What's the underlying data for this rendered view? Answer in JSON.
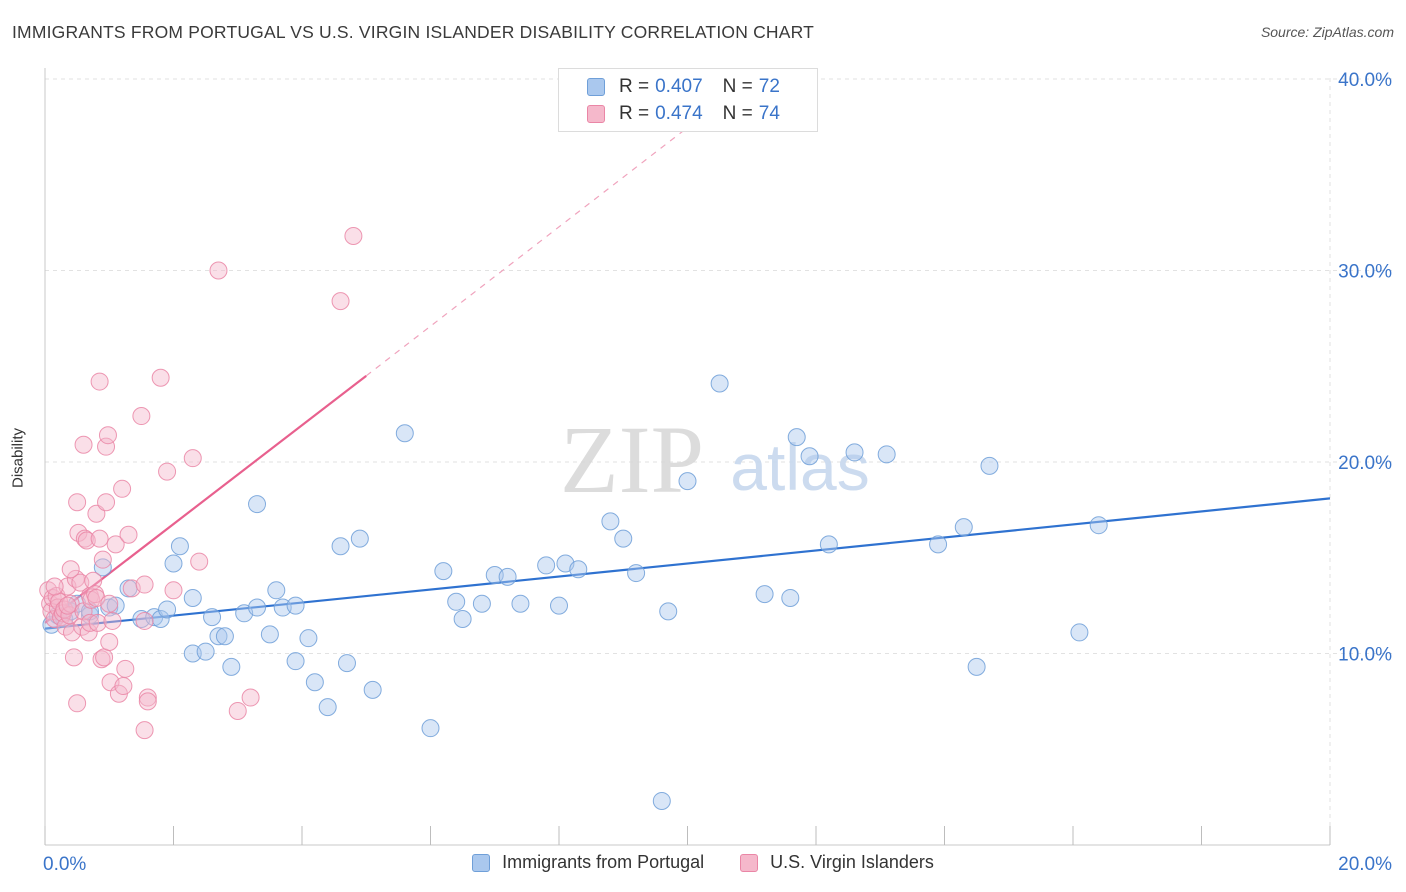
{
  "header": {
    "title": "IMMIGRANTS FROM PORTUGAL VS U.S. VIRGIN ISLANDER DISABILITY CORRELATION CHART",
    "source": "Source: ZipAtlas.com"
  },
  "watermark": {
    "zip": "ZIP",
    "atlas": "atlas"
  },
  "legend_top": {
    "rows": [
      {
        "r_label": "R =",
        "r_value": "0.407",
        "n_label": "N =",
        "n_value": "72"
      },
      {
        "r_label": "R =",
        "r_value": "0.474",
        "n_label": "N =",
        "n_value": "74"
      }
    ]
  },
  "legend_bottom": {
    "items": [
      "Immigrants from Portugal",
      "U.S. Virgin Islanders"
    ]
  },
  "colors": {
    "blue_fill": "#aac8ee",
    "blue_stroke": "#6f9fd8",
    "blue_line": "#2f72d0",
    "pink_fill": "#f5b8cb",
    "pink_stroke": "#ea86a6",
    "pink_line": "#e8608e",
    "tick_label": "#3a74c9",
    "grid": "#e2e2e2"
  },
  "chart_data": {
    "type": "scatter",
    "ylabel": "Disability",
    "xlim": [
      0,
      20
    ],
    "ylim": [
      0,
      40
    ],
    "x_ticks": [
      "0.0%",
      "20.0%"
    ],
    "y_ticks": [
      {
        "value": 10,
        "label": "10.0%"
      },
      {
        "value": 20,
        "label": "20.0%"
      },
      {
        "value": 30,
        "label": "30.0%"
      },
      {
        "value": 40,
        "label": "40.0%"
      }
    ],
    "series": [
      {
        "name": "Immigrants from Portugal",
        "color": "#6f9fd8",
        "trend": {
          "x": [
            0,
            20
          ],
          "y": [
            11.3,
            18.1
          ]
        },
        "points": [
          [
            0.1,
            11.5
          ],
          [
            0.3,
            11.8
          ],
          [
            0.4,
            12.2
          ],
          [
            0.5,
            12.6
          ],
          [
            0.7,
            12.0
          ],
          [
            0.7,
            12.2
          ],
          [
            0.9,
            14.5
          ],
          [
            1.0,
            12.4
          ],
          [
            1.1,
            12.5
          ],
          [
            1.3,
            13.4
          ],
          [
            1.5,
            11.8
          ],
          [
            1.7,
            11.9
          ],
          [
            1.8,
            11.8
          ],
          [
            1.9,
            12.3
          ],
          [
            2.0,
            14.7
          ],
          [
            2.1,
            15.6
          ],
          [
            2.3,
            10.0
          ],
          [
            2.3,
            12.9
          ],
          [
            2.5,
            10.1
          ],
          [
            2.6,
            11.9
          ],
          [
            2.7,
            10.9
          ],
          [
            2.8,
            10.9
          ],
          [
            2.9,
            9.3
          ],
          [
            3.1,
            12.1
          ],
          [
            3.3,
            17.8
          ],
          [
            3.3,
            12.4
          ],
          [
            3.5,
            11.0
          ],
          [
            3.6,
            13.3
          ],
          [
            3.7,
            12.4
          ],
          [
            3.9,
            12.5
          ],
          [
            3.9,
            9.6
          ],
          [
            4.1,
            10.8
          ],
          [
            4.2,
            8.5
          ],
          [
            4.4,
            7.2
          ],
          [
            4.6,
            15.6
          ],
          [
            4.7,
            9.5
          ],
          [
            4.9,
            16.0
          ],
          [
            5.1,
            8.1
          ],
          [
            5.6,
            21.5
          ],
          [
            6.0,
            6.1
          ],
          [
            6.2,
            14.3
          ],
          [
            6.4,
            12.7
          ],
          [
            6.5,
            11.8
          ],
          [
            6.8,
            12.6
          ],
          [
            7.0,
            14.1
          ],
          [
            7.2,
            14.0
          ],
          [
            7.4,
            12.6
          ],
          [
            7.8,
            14.6
          ],
          [
            8.0,
            12.5
          ],
          [
            8.1,
            14.7
          ],
          [
            8.3,
            14.4
          ],
          [
            8.8,
            16.9
          ],
          [
            9.0,
            16.0
          ],
          [
            9.2,
            14.2
          ],
          [
            9.6,
            2.3
          ],
          [
            9.7,
            12.2
          ],
          [
            10.0,
            19.0
          ],
          [
            10.5,
            24.1
          ],
          [
            11.2,
            13.1
          ],
          [
            11.6,
            12.9
          ],
          [
            11.7,
            21.3
          ],
          [
            11.9,
            20.3
          ],
          [
            12.2,
            15.7
          ],
          [
            12.6,
            20.5
          ],
          [
            13.1,
            20.4
          ],
          [
            13.9,
            15.7
          ],
          [
            14.3,
            16.6
          ],
          [
            14.5,
            9.3
          ],
          [
            14.7,
            19.8
          ],
          [
            16.1,
            11.1
          ],
          [
            16.4,
            16.7
          ],
          [
            0.2,
            12.0
          ]
        ]
      },
      {
        "name": "U.S. Virgin Islanders",
        "color": "#ea86a6",
        "trend": {
          "x": [
            0,
            5.0
          ],
          "y": [
            11.6,
            24.5
          ]
        },
        "trend_extended": {
          "x": [
            5.0,
            10.4
          ],
          "y": [
            24.5,
            38.5
          ]
        },
        "points": [
          [
            0.05,
            13.3
          ],
          [
            0.08,
            12.6
          ],
          [
            0.1,
            12.2
          ],
          [
            0.12,
            12.9
          ],
          [
            0.15,
            11.8
          ],
          [
            0.18,
            13.0
          ],
          [
            0.2,
            12.4
          ],
          [
            0.22,
            12.7
          ],
          [
            0.25,
            11.9
          ],
          [
            0.28,
            12.1
          ],
          [
            0.3,
            12.3
          ],
          [
            0.32,
            11.4
          ],
          [
            0.35,
            13.5
          ],
          [
            0.38,
            12.0
          ],
          [
            0.4,
            12.6
          ],
          [
            0.42,
            11.1
          ],
          [
            0.45,
            9.8
          ],
          [
            0.48,
            13.9
          ],
          [
            0.5,
            7.4
          ],
          [
            0.5,
            17.9
          ],
          [
            0.52,
            16.3
          ],
          [
            0.55,
            13.7
          ],
          [
            0.58,
            11.4
          ],
          [
            0.6,
            12.2
          ],
          [
            0.6,
            20.9
          ],
          [
            0.62,
            16.0
          ],
          [
            0.65,
            15.9
          ],
          [
            0.68,
            11.1
          ],
          [
            0.7,
            11.6
          ],
          [
            0.7,
            13.0
          ],
          [
            0.72,
            12.8
          ],
          [
            0.75,
            13.8
          ],
          [
            0.78,
            13.1
          ],
          [
            0.8,
            12.9
          ],
          [
            0.8,
            17.3
          ],
          [
            0.82,
            11.6
          ],
          [
            0.85,
            24.2
          ],
          [
            0.85,
            16.0
          ],
          [
            0.88,
            9.7
          ],
          [
            0.9,
            14.9
          ],
          [
            0.92,
            9.8
          ],
          [
            0.95,
            17.9
          ],
          [
            0.95,
            20.8
          ],
          [
            0.98,
            21.4
          ],
          [
            1.0,
            10.6
          ],
          [
            1.0,
            12.6
          ],
          [
            1.02,
            8.5
          ],
          [
            1.05,
            11.7
          ],
          [
            1.1,
            15.7
          ],
          [
            1.15,
            7.9
          ],
          [
            1.2,
            18.6
          ],
          [
            1.22,
            8.3
          ],
          [
            1.25,
            9.2
          ],
          [
            1.3,
            16.2
          ],
          [
            1.35,
            13.4
          ],
          [
            1.5,
            22.4
          ],
          [
            1.55,
            6.0
          ],
          [
            1.55,
            11.7
          ],
          [
            1.55,
            13.6
          ],
          [
            1.6,
            7.7
          ],
          [
            1.6,
            7.5
          ],
          [
            1.8,
            24.4
          ],
          [
            1.9,
            19.5
          ],
          [
            2.0,
            13.3
          ],
          [
            2.3,
            20.2
          ],
          [
            2.4,
            14.8
          ],
          [
            2.7,
            30.0
          ],
          [
            3.0,
            7.0
          ],
          [
            3.2,
            7.7
          ],
          [
            4.6,
            28.4
          ],
          [
            4.8,
            31.8
          ],
          [
            0.4,
            14.4
          ],
          [
            0.15,
            13.5
          ],
          [
            0.35,
            12.5
          ]
        ]
      }
    ]
  }
}
